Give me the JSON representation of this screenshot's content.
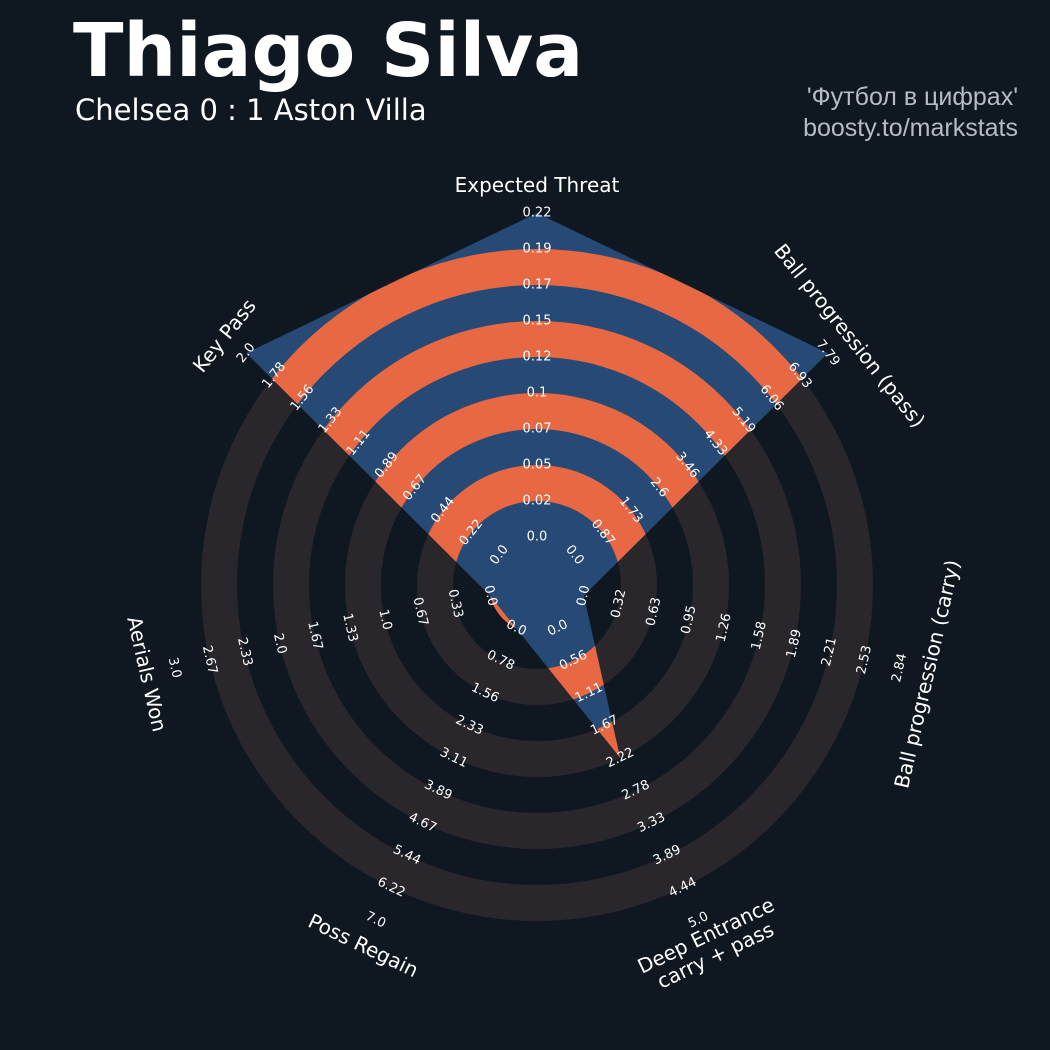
{
  "header": {
    "player_name": "Thiago Silva",
    "match": "Chelsea 0 : 1 Aston Villa"
  },
  "credit": {
    "line1": "'Футбол в цифрах'",
    "line2": "boosty.to/markstats"
  },
  "colors": {
    "background": "#0f1820",
    "ring_dark": "#29262c",
    "ring_accent": "#e86843",
    "value_fill": "#264a75",
    "text": "#ffffff",
    "credit_text": "#b5bcc4"
  },
  "chart_data": {
    "type": "radar",
    "axes": [
      {
        "label": "Expected Threat",
        "value": 0.22,
        "range": [
          0.0,
          0.22
        ],
        "ticks": [
          "0.0",
          "0.02",
          "0.05",
          "0.07",
          "0.1",
          "0.12",
          "0.15",
          "0.17",
          "0.19",
          "0.22"
        ]
      },
      {
        "label": "Ball progression (pass)",
        "value": 7.79,
        "range": [
          0.0,
          7.79
        ],
        "ticks": [
          "0.0",
          "0.87",
          "1.73",
          "2.6",
          "3.46",
          "4.33",
          "5.19",
          "6.06",
          "6.93",
          "7.79"
        ]
      },
      {
        "label": "Ball progression (carry)",
        "value": 0.0,
        "range": [
          0.0,
          2.84
        ],
        "ticks": [
          "0.0",
          "0.32",
          "0.63",
          "0.95",
          "1.26",
          "1.58",
          "1.89",
          "2.21",
          "2.53",
          "2.84"
        ]
      },
      {
        "label": "Deep Entrance\ncarry + pass",
        "value": 2.22,
        "range": [
          0.0,
          5.0
        ],
        "ticks": [
          "0.0",
          "0.56",
          "1.11",
          "1.67",
          "2.22",
          "2.78",
          "3.33",
          "3.89",
          "4.44",
          "5.0"
        ]
      },
      {
        "label": "Poss Regain",
        "value": 0.0,
        "range": [
          0.0,
          7.0
        ],
        "ticks": [
          "0.0",
          "0.78",
          "1.56",
          "2.33",
          "3.11",
          "3.89",
          "4.67",
          "5.44",
          "6.22",
          "7.0"
        ]
      },
      {
        "label": "Aerials Won",
        "value": 0.0,
        "range": [
          0.0,
          3.0
        ],
        "ticks": [
          "0.0",
          "0.33",
          "0.67",
          "1.0",
          "1.33",
          "1.67",
          "2.0",
          "2.33",
          "2.67",
          "3.0"
        ]
      },
      {
        "label": "Key Pass",
        "value": 2.0,
        "range": [
          0.0,
          2.0
        ],
        "ticks": [
          "0.0",
          "0.22",
          "0.44",
          "0.67",
          "0.89",
          "1.11",
          "1.33",
          "1.56",
          "1.78",
          "2.0"
        ]
      }
    ]
  }
}
